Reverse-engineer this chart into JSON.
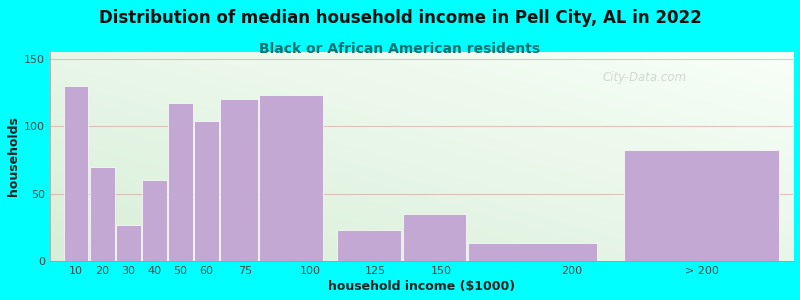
{
  "title": "Distribution of median household income in Pell City, AL in 2022",
  "subtitle": "Black or African American residents",
  "xlabel": "household income ($1000)",
  "ylabel": "households",
  "background_color": "#00ffff",
  "bar_color": "#c4a8d4",
  "bar_edge_color": "#ffffff",
  "values": [
    130,
    70,
    27,
    60,
    117,
    104,
    120,
    123,
    23,
    35,
    13,
    82
  ],
  "bar_widths": [
    10,
    10,
    10,
    10,
    10,
    10,
    15,
    25,
    25,
    25,
    50,
    60
  ],
  "bar_lefts": [
    5,
    15,
    25,
    35,
    45,
    55,
    65,
    80,
    110,
    135,
    160,
    220
  ],
  "xlim": [
    0,
    285
  ],
  "ylim": [
    0,
    155
  ],
  "yticks": [
    0,
    50,
    100,
    150
  ],
  "xtick_positions": [
    10,
    20,
    30,
    40,
    50,
    60,
    75,
    100,
    125,
    150,
    200,
    250
  ],
  "xtick_labels": [
    "10",
    "20",
    "30",
    "40",
    "50",
    "60",
    "75",
    "100",
    "125",
    "150",
    "200",
    "> 200"
  ],
  "title_fontsize": 12,
  "subtitle_fontsize": 10,
  "axis_label_fontsize": 9,
  "tick_fontsize": 8,
  "title_color": "#111111",
  "subtitle_color": "#107070",
  "axis_label_color": "#222222",
  "grid_color": "#d09090",
  "grid_alpha": 0.5,
  "watermark_text": "City-Data.com",
  "watermark_color": "#aaaaaa",
  "watermark_alpha": 0.45
}
